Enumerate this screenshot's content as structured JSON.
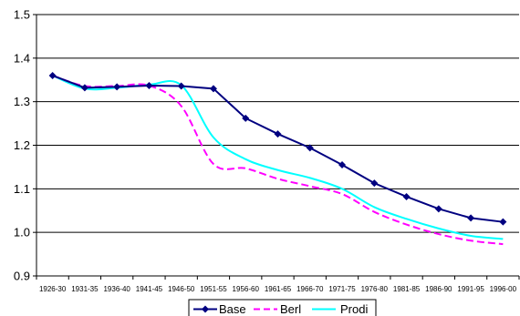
{
  "chart_data": {
    "type": "line",
    "categories": [
      "1926-30",
      "1931-35",
      "1936-40",
      "1941-45",
      "1946-50",
      "1951-55",
      "1956-60",
      "1961-65",
      "1966-70",
      "1971-75",
      "1976-80",
      "1981-85",
      "1986-90",
      "1991-95",
      "1996-00"
    ],
    "ylim": [
      0.9,
      1.5
    ],
    "yticks": [
      "0.9",
      "1.0",
      "1.1",
      "1.2",
      "1.3",
      "1.4",
      "1.5"
    ],
    "grid": true,
    "legend": "bottom",
    "series": [
      {
        "name": "Base",
        "color": "#000080",
        "style": "solid-diamond",
        "values": [
          1.36,
          1.332,
          1.334,
          1.337,
          1.336,
          1.33,
          1.262,
          1.226,
          1.194,
          1.155,
          1.113,
          1.082,
          1.054,
          1.033,
          1.024
        ]
      },
      {
        "name": "Berl",
        "color": "#FF00FF",
        "style": "dashed",
        "values": [
          1.36,
          1.336,
          1.336,
          1.337,
          1.29,
          1.157,
          1.147,
          1.123,
          1.106,
          1.088,
          1.047,
          1.018,
          0.996,
          0.981,
          0.973
        ]
      },
      {
        "name": "Prodi",
        "color": "#00FFFF",
        "style": "solid",
        "values": [
          1.36,
          1.33,
          1.332,
          1.339,
          1.338,
          1.218,
          1.168,
          1.143,
          1.125,
          1.1,
          1.058,
          1.031,
          1.009,
          0.992,
          0.985
        ]
      }
    ]
  }
}
